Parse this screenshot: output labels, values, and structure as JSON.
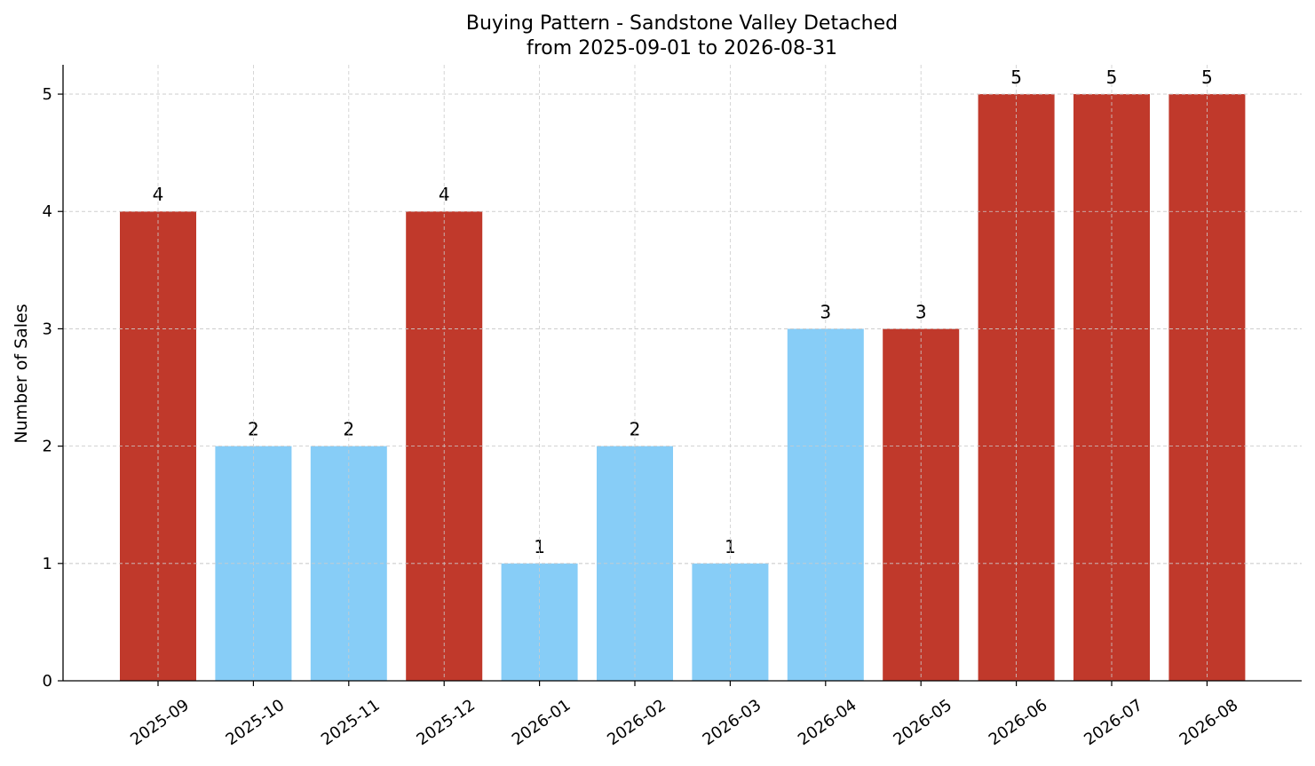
{
  "chart_data": {
    "type": "bar",
    "title": "Buying Pattern - Sandstone Valley Detached",
    "subtitle": "from 2025-09-01 to 2026-08-31",
    "xlabel": "",
    "ylabel": "Number of Sales",
    "categories": [
      "2025-09",
      "2025-10",
      "2025-11",
      "2025-12",
      "2026-01",
      "2026-02",
      "2026-03",
      "2026-04",
      "2026-05",
      "2026-06",
      "2026-07",
      "2026-08"
    ],
    "values": [
      4,
      2,
      2,
      4,
      1,
      2,
      1,
      3,
      3,
      5,
      5,
      5
    ],
    "highlight": [
      true,
      false,
      false,
      true,
      false,
      false,
      false,
      false,
      true,
      true,
      true,
      true
    ],
    "ylim": [
      0,
      5.25
    ],
    "yticks": [
      0,
      1,
      2,
      3,
      4,
      5
    ],
    "grid": true,
    "colors": {
      "highlight": "#c0392b",
      "normal": "#87cdf7"
    }
  }
}
